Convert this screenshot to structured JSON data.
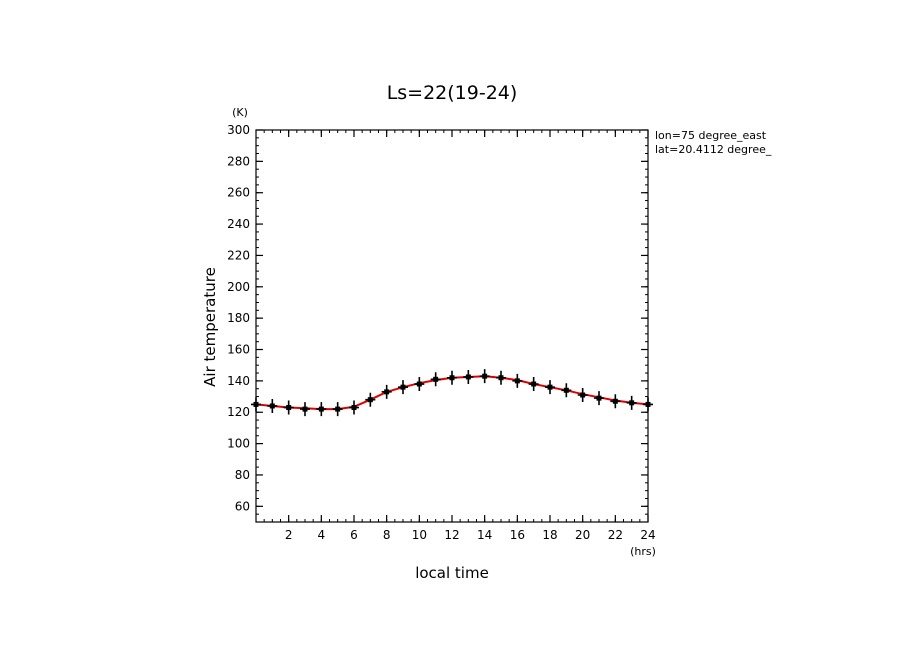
{
  "chart_data": {
    "type": "line",
    "title": "Ls=22(19-24)",
    "xlabel": "local time",
    "xunit": "(hrs)",
    "ylabel": "Air temperature",
    "yunit": "(K)",
    "xlim": [
      0,
      24
    ],
    "ylim": [
      50,
      300
    ],
    "xticks": [
      2,
      4,
      6,
      8,
      10,
      12,
      14,
      16,
      18,
      20,
      22,
      24
    ],
    "yticks": [
      60,
      80,
      100,
      120,
      140,
      160,
      180,
      200,
      220,
      240,
      260,
      280,
      300
    ],
    "annotations": [
      "lon=75 degree_east",
      "lat=20.4112 degree_"
    ],
    "grid": false,
    "series": [
      {
        "style": "line",
        "color": "#e00000",
        "x": [
          0,
          1,
          2,
          3,
          4,
          5,
          6,
          7,
          8,
          9,
          10,
          11,
          12,
          13,
          14,
          15,
          16,
          17,
          18,
          19,
          20,
          21,
          22,
          23,
          24
        ],
        "values": [
          125,
          124,
          123,
          122.5,
          122,
          122,
          123.5,
          128,
          133,
          136,
          138.5,
          140.5,
          142,
          142.5,
          143,
          142,
          140.5,
          138,
          136,
          134,
          131.5,
          129.5,
          127.5,
          126,
          125
        ]
      },
      {
        "style": "markers",
        "color": "#000000",
        "x": [
          0,
          1,
          2,
          3,
          4,
          5,
          6,
          7,
          8,
          9,
          10,
          11,
          12,
          13,
          14,
          15,
          16,
          17,
          18,
          19,
          20,
          21,
          22,
          23,
          24
        ],
        "values": [
          125,
          124,
          123,
          122,
          122,
          122,
          123,
          128,
          133,
          136,
          138,
          141,
          142,
          142.5,
          143,
          142,
          140,
          138,
          136,
          134,
          131,
          129,
          127,
          126,
          125
        ]
      }
    ]
  }
}
